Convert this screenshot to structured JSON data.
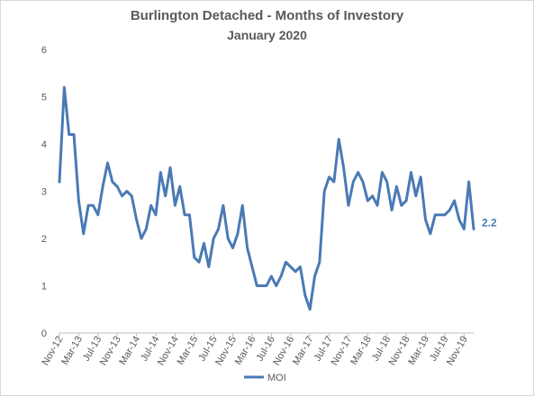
{
  "chart_data": {
    "type": "line",
    "title": "Burlington Detached - Months of Investory",
    "subtitle": "January 2020",
    "ylim": [
      0,
      6
    ],
    "yticks": [
      0,
      1,
      2,
      3,
      4,
      5,
      6
    ],
    "legend": "bottom",
    "grid": false,
    "end_label": "2.2",
    "series_color": "#4a7ab5",
    "x_tick_labels": [
      "Nov-12",
      "Mar-13",
      "Jul-13",
      "Nov-13",
      "Mar-14",
      "Jul-14",
      "Nov-14",
      "Mar-15",
      "Jul-15",
      "Nov-15",
      "Mar-16",
      "Jul-16",
      "Nov-16",
      "Mar-17",
      "Jul-17",
      "Nov-17",
      "Mar-18",
      "Jul-18",
      "Nov-18",
      "Mar-19",
      "Jul-19",
      "Nov-19"
    ],
    "x": [
      "Nov-12",
      "Dec-12",
      "Jan-13",
      "Feb-13",
      "Mar-13",
      "Apr-13",
      "May-13",
      "Jun-13",
      "Jul-13",
      "Aug-13",
      "Sep-13",
      "Oct-13",
      "Nov-13",
      "Dec-13",
      "Jan-14",
      "Feb-14",
      "Mar-14",
      "Apr-14",
      "May-14",
      "Jun-14",
      "Jul-14",
      "Aug-14",
      "Sep-14",
      "Oct-14",
      "Nov-14",
      "Dec-14",
      "Jan-15",
      "Feb-15",
      "Mar-15",
      "Apr-15",
      "May-15",
      "Jun-15",
      "Jul-15",
      "Aug-15",
      "Sep-15",
      "Oct-15",
      "Nov-15",
      "Dec-15",
      "Jan-16",
      "Feb-16",
      "Mar-16",
      "Apr-16",
      "May-16",
      "Jun-16",
      "Jul-16",
      "Aug-16",
      "Sep-16",
      "Oct-16",
      "Nov-16",
      "Dec-16",
      "Jan-17",
      "Feb-17",
      "Mar-17",
      "Apr-17",
      "May-17",
      "Jun-17",
      "Jul-17",
      "Aug-17",
      "Sep-17",
      "Oct-17",
      "Nov-17",
      "Dec-17",
      "Jan-18",
      "Feb-18",
      "Mar-18",
      "Apr-18",
      "May-18",
      "Jun-18",
      "Jul-18",
      "Aug-18",
      "Sep-18",
      "Oct-18",
      "Nov-18",
      "Dec-18",
      "Jan-19",
      "Feb-19",
      "Mar-19",
      "Apr-19",
      "May-19",
      "Jun-19",
      "Jul-19",
      "Aug-19",
      "Sep-19",
      "Oct-19",
      "Nov-19",
      "Dec-19",
      "Jan-20"
    ],
    "series": [
      {
        "name": "MOI",
        "values": [
          3.2,
          5.2,
          4.2,
          4.2,
          2.8,
          2.1,
          2.7,
          2.7,
          2.5,
          3.1,
          3.6,
          3.2,
          3.1,
          2.9,
          3.0,
          2.9,
          2.4,
          2.0,
          2.2,
          2.7,
          2.5,
          3.4,
          2.9,
          3.5,
          2.7,
          3.1,
          2.5,
          2.5,
          1.6,
          1.5,
          1.9,
          1.4,
          2.0,
          2.2,
          2.7,
          2.0,
          1.8,
          2.1,
          2.7,
          1.8,
          1.4,
          1.0,
          1.0,
          1.0,
          1.2,
          1.0,
          1.2,
          1.5,
          1.4,
          1.3,
          1.4,
          0.8,
          0.5,
          1.2,
          1.5,
          3.0,
          3.3,
          3.2,
          4.1,
          3.5,
          2.7,
          3.2,
          3.4,
          3.2,
          2.8,
          2.9,
          2.7,
          3.4,
          3.2,
          2.6,
          3.1,
          2.7,
          2.8,
          3.4,
          2.9,
          3.3,
          2.4,
          2.1,
          2.5,
          2.5,
          2.5,
          2.6,
          2.8,
          2.4,
          2.2,
          3.2,
          2.2
        ]
      }
    ]
  }
}
